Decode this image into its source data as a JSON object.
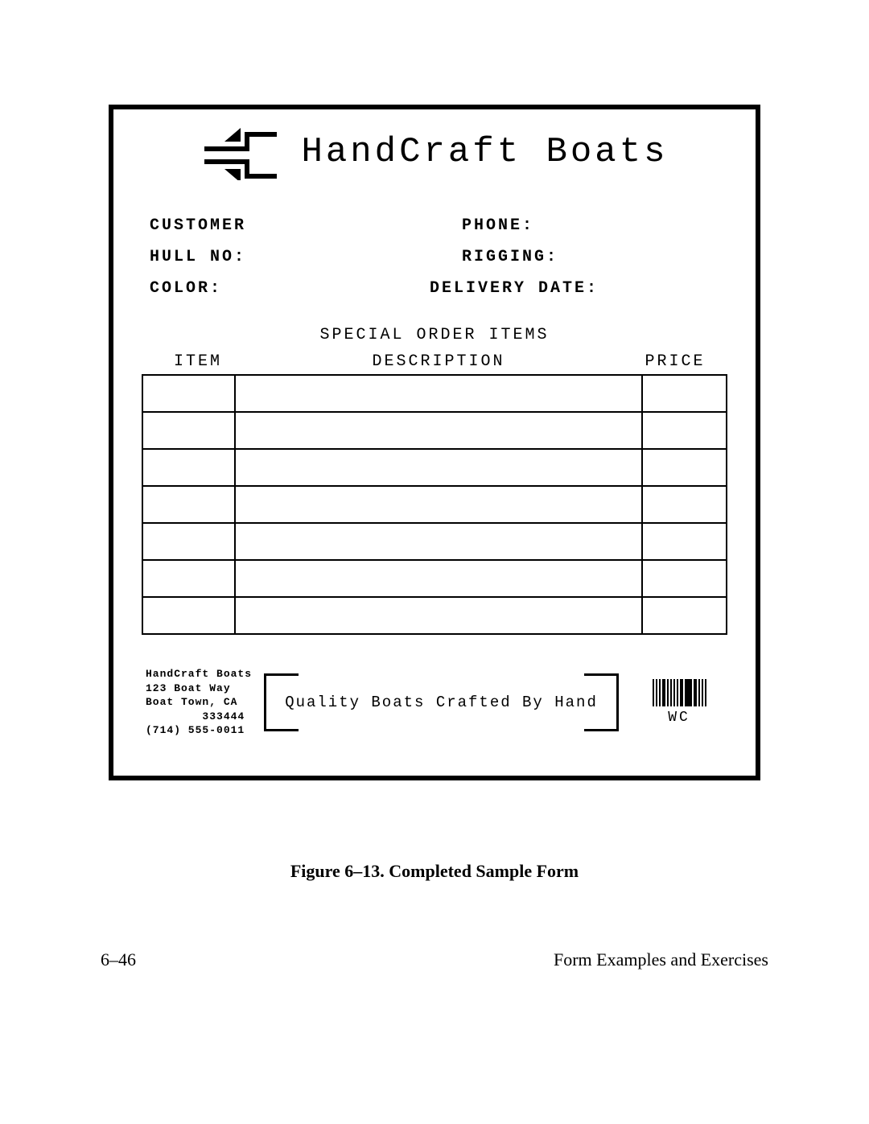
{
  "form": {
    "company_name": "HandCraft Boats",
    "fields": {
      "customer_label": "CUSTOMER",
      "phone_label": "PHONE:",
      "hull_label": "HULL NO:",
      "rigging_label": "RIGGING:",
      "color_label": "COLOR:",
      "delivery_label": "DELIVERY DATE:"
    },
    "section_title": "SPECIAL ORDER ITEMS",
    "columns": {
      "item": "ITEM",
      "description": "DESCRIPTION",
      "price": "PRICE"
    },
    "row_count": 7,
    "address_lines": "HandCraft Boats\n123 Boat Way\nBoat Town, CA\n        333444\n(714) 555-0011",
    "tagline": "Quality Boats Crafted By Hand",
    "barcode_label": "WC",
    "border_color": "#000000",
    "background_color": "#ffffff",
    "font_family_mono": "Courier New"
  },
  "caption": "Figure 6–13. Completed Sample Form",
  "page_footer": {
    "left": "6–46",
    "right": "Form Examples and Exercises"
  }
}
